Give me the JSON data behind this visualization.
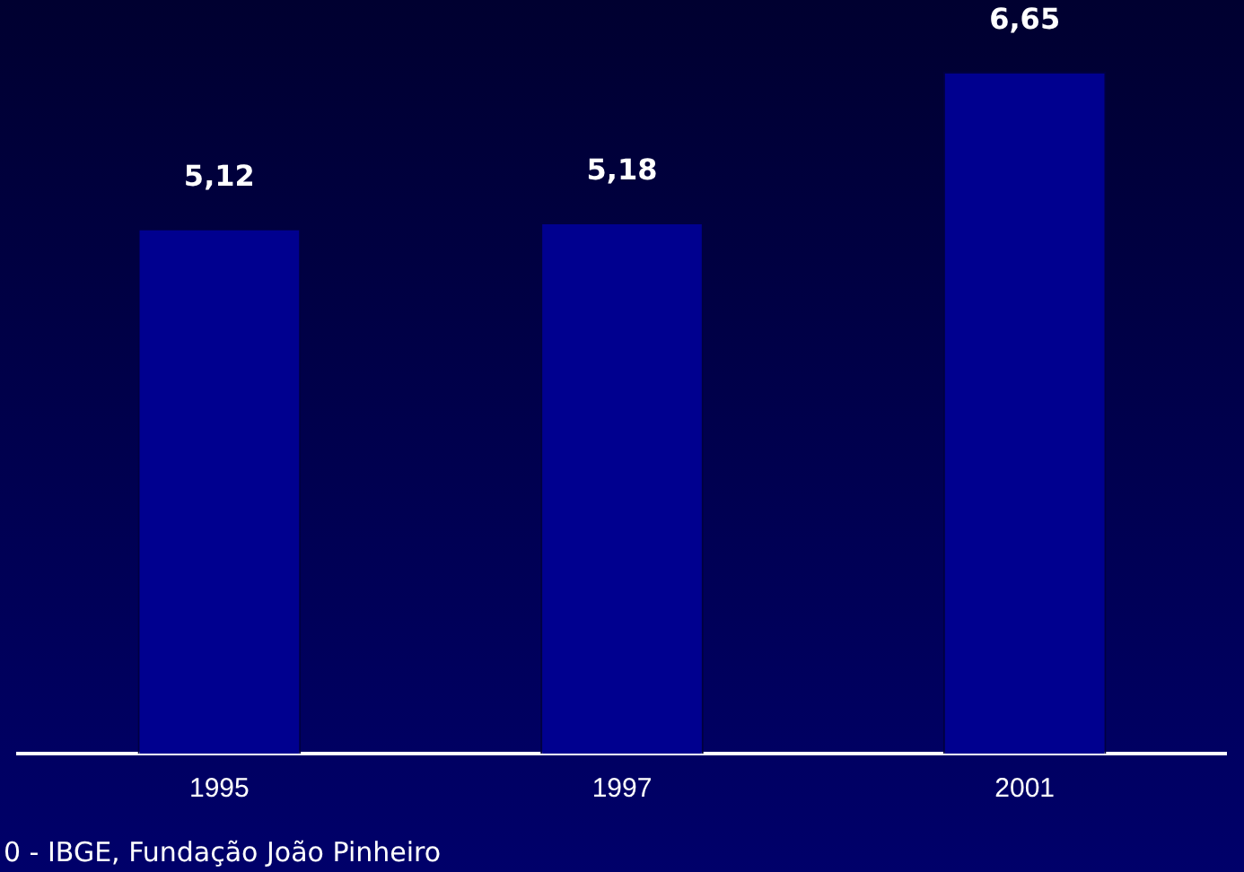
{
  "chart_data": {
    "type": "bar",
    "categories": [
      "1995",
      "1997",
      "2001"
    ],
    "values": [
      5.12,
      5.18,
      6.65
    ],
    "color": "#00008f",
    "value_labels": [
      "5,12",
      "5,18",
      "6,65"
    ],
    "annotations": [
      "0  -  IBGE, Fundação João Pinheiro"
    ],
    "grid": false,
    "legend": false
  }
}
